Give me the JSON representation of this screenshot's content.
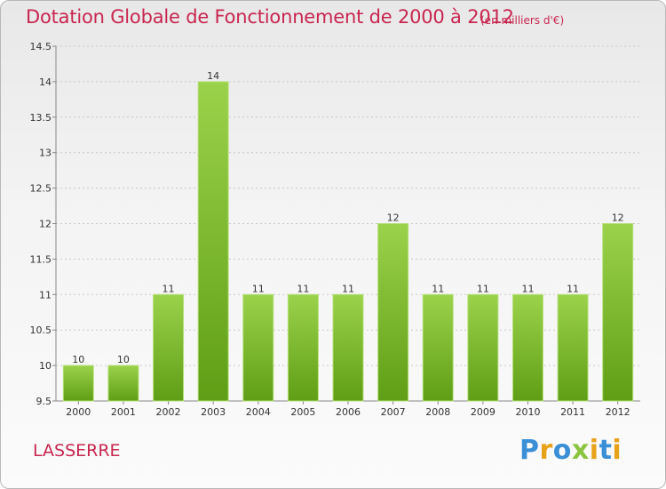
{
  "header": {
    "title": "Dotation Globale de Fonctionnement de 2000 à 2012",
    "subtitle": "(en milliers d'€)"
  },
  "footer": {
    "commune": "LASSERRE",
    "logo_text": "Proxiti",
    "logo_letters": [
      {
        "char": "P",
        "color": "#3a8fd6"
      },
      {
        "char": "r",
        "color": "#e8a21a"
      },
      {
        "char": "o",
        "color": "#3a8fd6"
      },
      {
        "char": "x",
        "color": "#8bc43f"
      },
      {
        "char": "i",
        "color": "#e8a21a"
      },
      {
        "char": "t",
        "color": "#3a8fd6"
      },
      {
        "char": "i",
        "color": "#e8a21a"
      }
    ]
  },
  "colors": {
    "accent": "#c8264f",
    "bar_top": "#9bd24b",
    "bar_bottom": "#5f9e16",
    "grid": "#c8c8c8"
  },
  "chart_data": {
    "type": "bar",
    "categories": [
      "2000",
      "2001",
      "2002",
      "2003",
      "2004",
      "2005",
      "2006",
      "2007",
      "2008",
      "2009",
      "2010",
      "2011",
      "2012"
    ],
    "values": [
      10,
      10,
      11,
      14,
      11,
      11,
      11,
      12,
      11,
      11,
      11,
      11,
      12
    ],
    "value_labels": [
      "10",
      "10",
      "11",
      "14",
      "11",
      "11",
      "11",
      "12",
      "11",
      "11",
      "11",
      "11",
      "12"
    ],
    "title": "Dotation Globale de Fonctionnement de 2000 à 2012",
    "subtitle": "(en milliers d'€)",
    "ylim": [
      9.5,
      14.5
    ],
    "yticks": [
      "9.5",
      "10",
      "10.5",
      "11",
      "11.5",
      "12",
      "12.5",
      "13",
      "13.5",
      "14",
      "14.5"
    ],
    "grid": "dotted horizontal",
    "legend": "none"
  }
}
